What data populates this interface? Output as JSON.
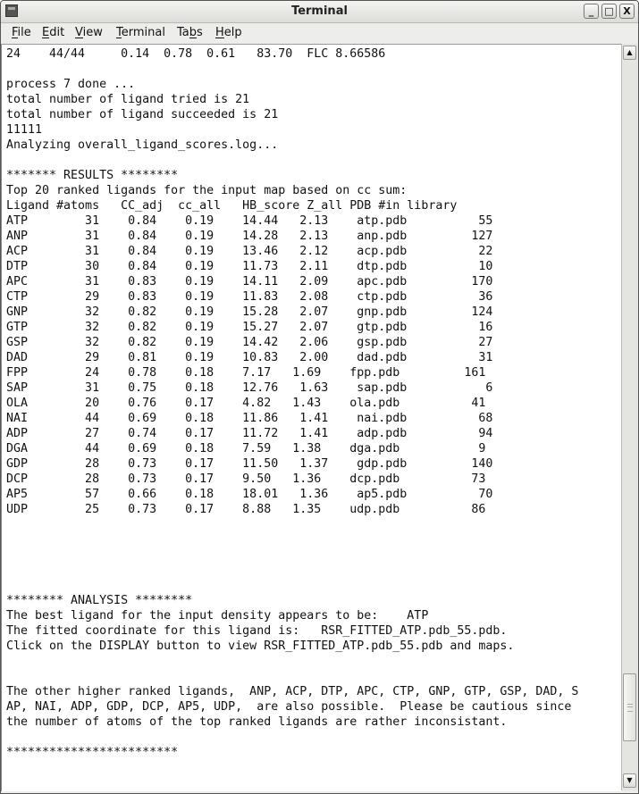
{
  "window": {
    "title": "Terminal",
    "app_icon": "terminal-icon",
    "buttons": {
      "minimize": "_",
      "maximize": "□",
      "close": "X"
    }
  },
  "menu": [
    {
      "label": "File",
      "mnemonic": 0
    },
    {
      "label": "Edit",
      "mnemonic": 0
    },
    {
      "label": "View",
      "mnemonic": 0
    },
    {
      "label": "Terminal",
      "mnemonic": 0
    },
    {
      "label": "Tabs",
      "mnemonic": 2
    },
    {
      "label": "Help",
      "mnemonic": 0
    }
  ],
  "terminal": {
    "lines": [
      "24    44/44     0.14  0.78  0.61   83.70  FLC 8.66586",
      "",
      "process 7 done ...",
      "total number of ligand tried is 21",
      "total number of ligand succeeded is 21",
      "11111",
      "Analyzing overall_ligand_scores.log...",
      "",
      "******* RESULTS ********",
      "Top 20 ranked ligands for the input map based on cc sum:",
      "Ligand #atoms   CC_adj  cc_all   HB_score Z_all PDB #in library",
      "ATP        31    0.84    0.19    14.44   2.13    atp.pdb          55",
      "ANP        31    0.84    0.19    14.28   2.13    anp.pdb         127",
      "ACP        31    0.84    0.19    13.46   2.12    acp.pdb          22",
      "DTP        30    0.84    0.19    11.73   2.11    dtp.pdb          10",
      "APC        31    0.83    0.19    14.11   2.09    apc.pdb         170",
      "CTP        29    0.83    0.19    11.83   2.08    ctp.pdb          36",
      "GNP        32    0.82    0.19    15.28   2.07    gnp.pdb         124",
      "GTP        32    0.82    0.19    15.27   2.07    gtp.pdb          16",
      "GSP        32    0.82    0.19    14.42   2.06    gsp.pdb          27",
      "DAD        29    0.81    0.19    10.83   2.00    dad.pdb          31",
      "FPP        24    0.78    0.18    7.17   1.69    fpp.pdb         161",
      "SAP        31    0.75    0.18    12.76   1.63    sap.pdb           6",
      "OLA        20    0.76    0.17    4.82   1.43    ola.pdb          41",
      "NAI        44    0.69    0.18    11.86   1.41    nai.pdb          68",
      "ADP        27    0.74    0.17    11.72   1.41    adp.pdb          94",
      "DGA        44    0.69    0.18    7.59   1.38    dga.pdb           9",
      "GDP        28    0.73    0.17    11.50   1.37    gdp.pdb         140",
      "DCP        28    0.73    0.17    9.50   1.36    dcp.pdb          73",
      "AP5        57    0.66    0.18    18.01   1.36    ap5.pdb          70",
      "UDP        25    0.73    0.17    8.88   1.35    udp.pdb          86",
      "",
      "",
      "",
      "",
      "",
      "******** ANALYSIS ********",
      "The best ligand for the input density appears to be:    ATP",
      "The fitted coordinate for this ligand is:   RSR_FITTED_ATP.pdb_55.pdb.",
      "Click on the DISPLAY button to view RSR_FITTED_ATP.pdb_55.pdb and maps.",
      "",
      "",
      "The other higher ranked ligands,  ANP, ACP, DTP, APC, CTP, GNP, GTP, GSP, DAD, S",
      "AP, NAI, ADP, GDP, DCP, AP5, UDP,  are also possible.  Please be cautious since",
      "the number of atoms of the top ranked ligands are rather inconsistant.",
      "",
      "************************"
    ]
  },
  "scrollbar": {
    "position_fraction": 0.95,
    "up_icon": "▲",
    "down_icon": "▼"
  }
}
